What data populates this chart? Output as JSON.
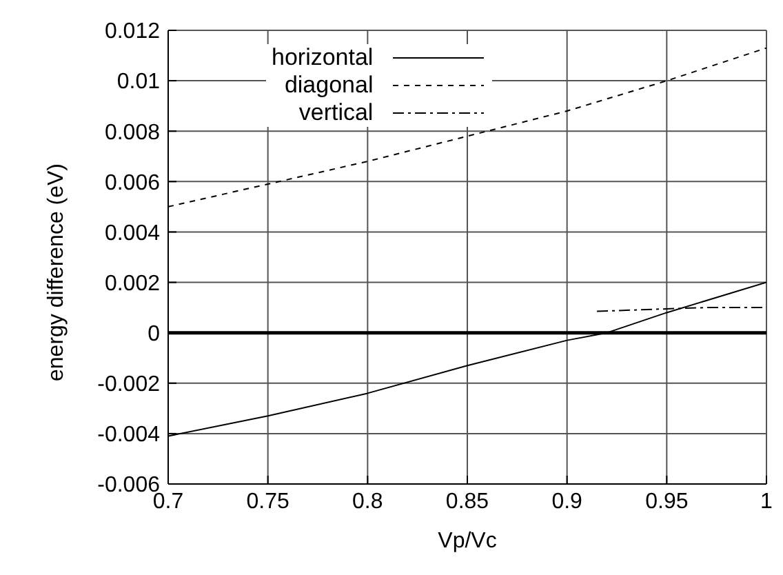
{
  "chart_data": {
    "type": "line",
    "xlabel": "Vp/Vc",
    "ylabel": "energy difference (eV)",
    "xlim": [
      0.7,
      1
    ],
    "xticks": [
      0.7,
      0.75,
      0.8,
      0.85,
      0.9,
      0.95,
      1
    ],
    "ylim": [
      -0.006,
      0.012
    ],
    "yticks": [
      -0.006,
      -0.004,
      -0.002,
      0,
      0.002,
      0.004,
      0.006,
      0.008,
      0.01,
      0.012
    ],
    "grid": true,
    "legend": "top left",
    "marker": "none",
    "ref_lines": [
      {
        "axis": "y",
        "value": 0,
        "color": "#000000"
      }
    ],
    "series": [
      {
        "name": "horizontal",
        "color": "#000000",
        "line_style": "solid",
        "x": [
          0.7,
          0.75,
          0.8,
          0.85,
          0.9,
          0.92,
          0.95,
          1
        ],
        "values": [
          -0.0041,
          -0.0033,
          -0.0024,
          -0.0013,
          -0.0003,
          0,
          0.0008,
          0.002
        ]
      },
      {
        "name": "diagonal",
        "color": "#000000",
        "line_style": "dashed",
        "x": [
          0.7,
          0.75,
          0.8,
          0.85,
          0.9,
          0.95,
          1
        ],
        "values": [
          0.005,
          0.0059,
          0.0068,
          0.0078,
          0.0088,
          0.01,
          0.0113
        ]
      },
      {
        "name": "vertical",
        "color": "#000000",
        "line_style": "dashdot",
        "x": [
          0.915,
          0.95,
          0.97,
          1
        ],
        "values": [
          0.00085,
          0.00095,
          0.001,
          0.001
        ]
      }
    ]
  }
}
